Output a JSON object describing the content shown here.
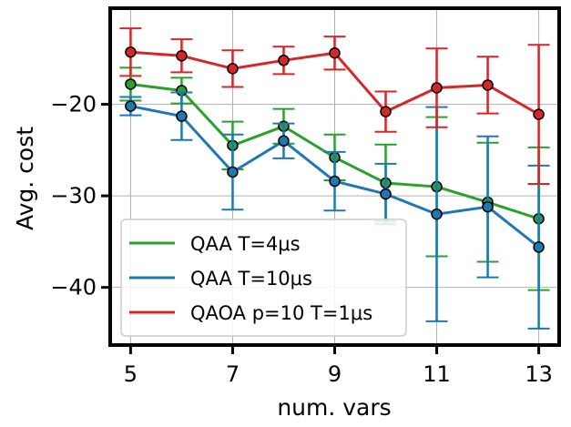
{
  "chart_data": {
    "type": "line",
    "title": "",
    "xlabel": "num. vars",
    "ylabel": "Avg. cost",
    "xlim": [
      4.6,
      13.4
    ],
    "ylim": [
      -46.3,
      -9.5
    ],
    "xticks": [
      5,
      7,
      9,
      11,
      13
    ],
    "xtick_labels": [
      "5",
      "7",
      "9",
      "11",
      "13"
    ],
    "yticks": [
      -20,
      -30,
      -40
    ],
    "ytick_labels": [
      "−20",
      "−30",
      "−40"
    ],
    "grid": true,
    "legend_position": "lower-left",
    "x": [
      5,
      6,
      7,
      8,
      9,
      10,
      11,
      12,
      13
    ],
    "series": [
      {
        "name": "QAA T=4μs",
        "color": "#2ca02c",
        "values": [
          -17.8,
          -18.5,
          -24.5,
          -22.4,
          -25.8,
          -28.6,
          -29.0,
          -30.7,
          -32.5
        ],
        "err": [
          1.8,
          1.4,
          2.6,
          1.9,
          2.5,
          4.2,
          7.6,
          6.5,
          7.8
        ]
      },
      {
        "name": "QAA T=10μs",
        "color": "#1f77b4",
        "values": [
          -20.2,
          -21.3,
          -27.4,
          -24.0,
          -28.4,
          -29.8,
          -32.0,
          -31.2,
          -35.6
        ],
        "err": [
          1.0,
          2.6,
          4.1,
          1.9,
          3.2,
          3.3,
          11.7,
          7.7,
          8.9
        ]
      },
      {
        "name": "QAOA p=10 T=1μs",
        "color": "#d62728",
        "values": [
          -14.3,
          -14.7,
          -16.1,
          -15.2,
          -14.4,
          -20.8,
          -18.2,
          -17.9,
          -21.1
        ],
        "err": [
          2.6,
          1.8,
          2.0,
          1.5,
          1.8,
          2.2,
          4.3,
          3.1,
          7.6
        ]
      }
    ]
  }
}
